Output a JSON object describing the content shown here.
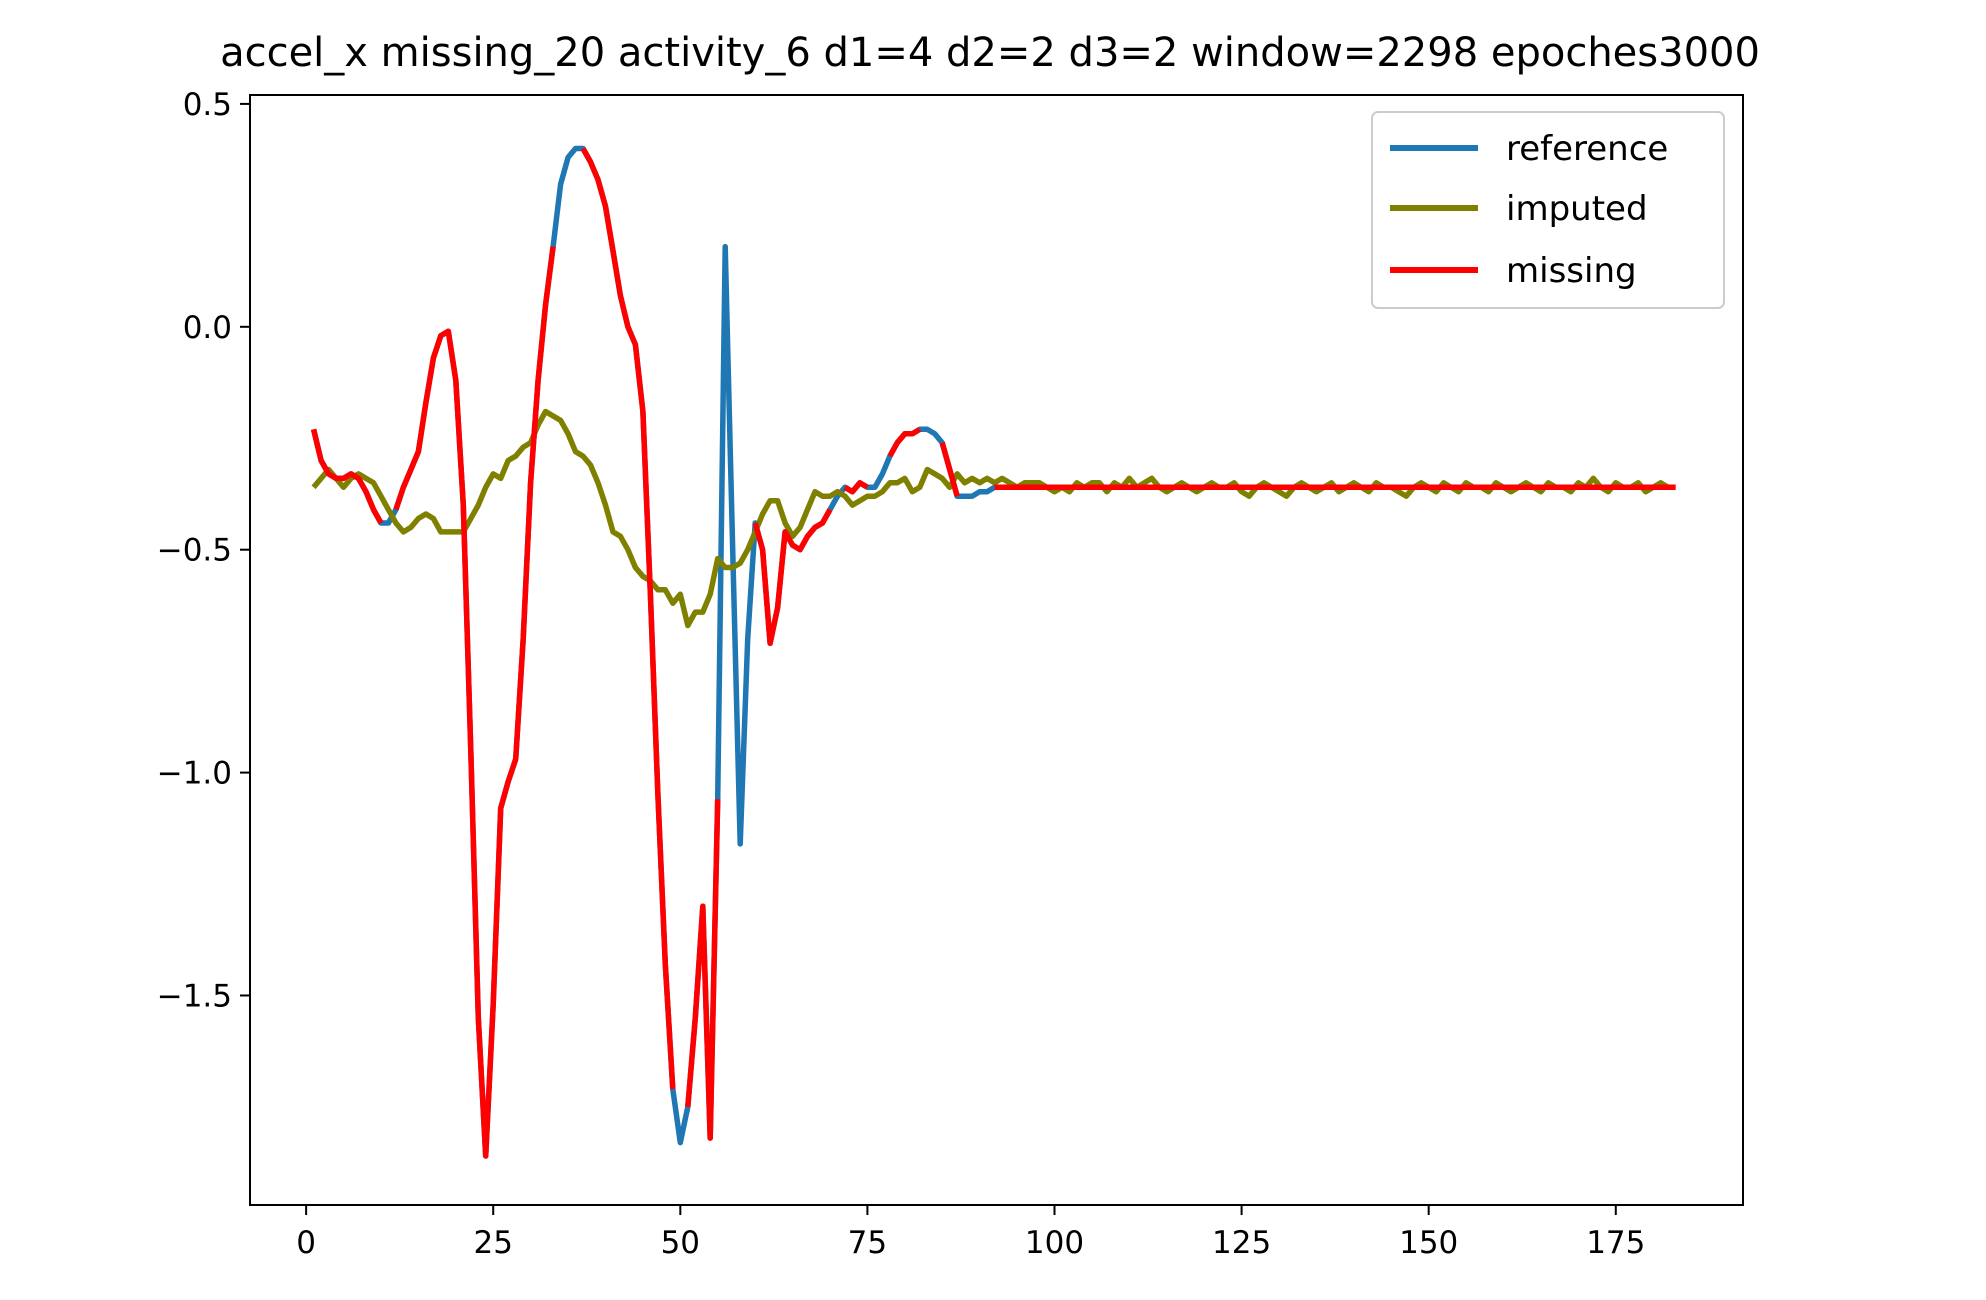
{
  "chart_data": {
    "type": "line",
    "title": "accel_x missing_20 activity_6 d1=4 d2=2 d3=2 window=2298 epoches3000",
    "xlabel": "",
    "ylabel": "",
    "xlim": [
      -7.5,
      192
    ],
    "ylim": [
      -1.97,
      0.52
    ],
    "xticks": [
      0,
      25,
      50,
      75,
      100,
      125,
      150,
      175
    ],
    "yticks": [
      0.5,
      0.0,
      -0.5,
      -1.0,
      -1.5
    ],
    "ytick_labels": [
      "0.5",
      "0.0",
      "−0.5",
      "−1.0",
      "−1.5"
    ],
    "grid": false,
    "legend_position": "top-right",
    "colors": {
      "reference": "#1f77b4",
      "imputed": "#808000",
      "missing": "#ff0000"
    },
    "series": [
      {
        "name": "reference",
        "x": [
          1,
          2,
          3,
          4,
          5,
          6,
          7,
          8,
          9,
          10,
          11,
          12,
          13,
          14,
          15,
          16,
          17,
          18,
          19,
          20,
          21,
          22,
          23,
          24,
          25,
          26,
          27,
          28,
          29,
          30,
          31,
          32,
          33,
          34,
          35,
          36,
          37,
          38,
          39,
          40,
          41,
          42,
          43,
          44,
          45,
          46,
          47,
          48,
          49,
          50,
          51,
          52,
          53,
          54,
          55,
          56,
          57,
          58,
          59,
          60,
          61,
          62,
          63,
          64,
          65,
          66,
          67,
          68,
          69,
          70,
          71,
          72,
          73,
          74,
          75,
          76,
          77,
          78,
          79,
          80,
          81,
          82,
          83,
          84,
          85,
          86,
          87,
          88,
          89,
          90,
          91,
          92,
          93
        ],
        "y": [
          -0.23,
          -0.3,
          -0.33,
          -0.34,
          -0.34,
          -0.33,
          -0.34,
          -0.37,
          -0.41,
          -0.44,
          -0.44,
          -0.41,
          -0.36,
          -0.32,
          -0.28,
          -0.17,
          -0.07,
          -0.02,
          -0.01,
          -0.12,
          -0.4,
          -0.95,
          -1.55,
          -1.86,
          -1.52,
          -1.08,
          -1.02,
          -0.97,
          -0.7,
          -0.35,
          -0.12,
          0.05,
          0.18,
          0.32,
          0.38,
          0.4,
          0.4,
          0.37,
          0.33,
          0.27,
          0.17,
          0.07,
          0.0,
          -0.04,
          -0.19,
          -0.6,
          -1.05,
          -1.43,
          -1.71,
          -1.83,
          -1.75,
          -1.55,
          -1.3,
          -1.82,
          -1.06,
          0.18,
          -0.5,
          -1.16,
          -0.7,
          -0.44,
          -0.5,
          -0.71,
          -0.63,
          -0.46,
          -0.49,
          -0.5,
          -0.47,
          -0.45,
          -0.44,
          -0.41,
          -0.38,
          -0.36,
          -0.37,
          -0.35,
          -0.36,
          -0.36,
          -0.33,
          -0.29,
          -0.26,
          -0.24,
          -0.24,
          -0.23,
          -0.23,
          -0.24,
          -0.26,
          -0.32,
          -0.38,
          -0.38,
          -0.38,
          -0.37,
          -0.37,
          -0.36,
          -0.36
        ]
      },
      {
        "name": "imputed",
        "x": [
          1,
          2,
          3,
          4,
          5,
          6,
          7,
          8,
          9,
          10,
          11,
          12,
          13,
          14,
          15,
          16,
          17,
          18,
          19,
          20,
          21,
          22,
          23,
          24,
          25,
          26,
          27,
          28,
          29,
          30,
          31,
          32,
          33,
          34,
          35,
          36,
          37,
          38,
          39,
          40,
          41,
          42,
          43,
          44,
          45,
          46,
          47,
          48,
          49,
          50,
          51,
          52,
          53,
          54,
          55,
          56,
          57,
          58,
          59,
          60,
          61,
          62,
          63,
          64,
          65,
          66,
          67,
          68,
          69,
          70,
          71,
          72,
          73,
          74,
          75,
          76,
          77,
          78,
          79,
          80,
          81,
          82,
          83,
          84,
          85,
          86,
          87,
          88,
          89,
          90,
          91,
          92,
          93,
          94,
          95,
          96,
          97,
          98,
          99,
          100,
          101,
          102,
          103,
          104,
          105,
          106,
          107,
          108,
          109,
          110,
          111,
          112,
          113,
          114,
          115,
          116,
          117,
          118,
          119,
          120,
          121,
          122,
          123,
          124,
          125,
          126,
          127,
          128,
          129,
          130,
          131,
          132,
          133,
          134,
          135,
          136,
          137,
          138,
          139,
          140,
          141,
          142,
          143,
          144,
          145,
          146,
          147,
          148,
          149,
          150,
          151,
          152,
          153,
          154,
          155,
          156,
          157,
          158,
          159,
          160,
          161,
          162,
          163,
          164,
          165,
          166,
          167,
          168,
          169,
          170,
          171,
          172,
          173,
          174,
          175,
          176,
          177,
          178,
          179,
          180,
          181,
          182,
          183
        ],
        "y": [
          -0.36,
          -0.34,
          -0.32,
          -0.34,
          -0.36,
          -0.34,
          -0.33,
          -0.34,
          -0.35,
          -0.38,
          -0.41,
          -0.44,
          -0.46,
          -0.45,
          -0.43,
          -0.42,
          -0.43,
          -0.46,
          -0.46,
          -0.46,
          -0.46,
          -0.43,
          -0.4,
          -0.36,
          -0.33,
          -0.34,
          -0.3,
          -0.29,
          -0.27,
          -0.26,
          -0.22,
          -0.19,
          -0.2,
          -0.21,
          -0.24,
          -0.28,
          -0.29,
          -0.31,
          -0.35,
          -0.4,
          -0.46,
          -0.47,
          -0.5,
          -0.54,
          -0.56,
          -0.57,
          -0.59,
          -0.59,
          -0.62,
          -0.6,
          -0.67,
          -0.64,
          -0.64,
          -0.6,
          -0.52,
          -0.54,
          -0.54,
          -0.53,
          -0.5,
          -0.46,
          -0.42,
          -0.39,
          -0.39,
          -0.44,
          -0.47,
          -0.45,
          -0.41,
          -0.37,
          -0.38,
          -0.38,
          -0.37,
          -0.38,
          -0.4,
          -0.39,
          -0.38,
          -0.38,
          -0.37,
          -0.35,
          -0.35,
          -0.34,
          -0.37,
          -0.36,
          -0.32,
          -0.33,
          -0.34,
          -0.36,
          -0.33,
          -0.35,
          -0.34,
          -0.35,
          -0.34,
          -0.35,
          -0.34,
          -0.35,
          -0.36,
          -0.35,
          -0.35,
          -0.35,
          -0.36,
          -0.37,
          -0.36,
          -0.37,
          -0.35,
          -0.36,
          -0.35,
          -0.35,
          -0.37,
          -0.35,
          -0.36,
          -0.34,
          -0.36,
          -0.35,
          -0.34,
          -0.36,
          -0.37,
          -0.36,
          -0.35,
          -0.36,
          -0.37,
          -0.36,
          -0.35,
          -0.36,
          -0.36,
          -0.35,
          -0.37,
          -0.38,
          -0.36,
          -0.35,
          -0.36,
          -0.37,
          -0.38,
          -0.36,
          -0.35,
          -0.36,
          -0.37,
          -0.36,
          -0.35,
          -0.37,
          -0.36,
          -0.35,
          -0.36,
          -0.37,
          -0.35,
          -0.36,
          -0.36,
          -0.37,
          -0.38,
          -0.36,
          -0.35,
          -0.36,
          -0.37,
          -0.35,
          -0.36,
          -0.37,
          -0.35,
          -0.36,
          -0.36,
          -0.37,
          -0.35,
          -0.36,
          -0.37,
          -0.36,
          -0.35,
          -0.36,
          -0.37,
          -0.35,
          -0.36,
          -0.36,
          -0.37,
          -0.35,
          -0.36,
          -0.34,
          -0.36,
          -0.37,
          -0.35,
          -0.36,
          -0.36,
          -0.35,
          -0.37,
          -0.36,
          -0.35,
          -0.36,
          -0.36
        ]
      },
      {
        "name": "missing",
        "segments": [
          {
            "x": [
              1,
              2,
              3,
              4,
              5,
              6,
              7,
              8,
              9,
              10
            ],
            "y": [
              -0.23,
              -0.3,
              -0.33,
              -0.34,
              -0.34,
              -0.33,
              -0.34,
              -0.37,
              -0.41,
              -0.44
            ]
          },
          {
            "x": [
              12,
              13,
              14,
              15,
              16,
              17,
              18,
              19,
              20,
              21,
              22,
              23,
              24,
              25,
              26,
              27,
              28,
              29,
              30,
              31,
              32,
              33
            ],
            "y": [
              -0.41,
              -0.36,
              -0.32,
              -0.28,
              -0.17,
              -0.07,
              -0.02,
              -0.01,
              -0.12,
              -0.4,
              -0.95,
              -1.55,
              -1.86,
              -1.52,
              -1.08,
              -1.02,
              -0.97,
              -0.7,
              -0.35,
              -0.12,
              0.05,
              0.18
            ]
          },
          {
            "x": [
              37,
              38,
              39,
              40,
              41,
              42,
              43,
              44,
              45,
              46,
              47,
              48,
              49
            ],
            "y": [
              0.4,
              0.37,
              0.33,
              0.27,
              0.17,
              0.07,
              0.0,
              -0.04,
              -0.19,
              -0.6,
              -1.05,
              -1.43,
              -1.71
            ]
          },
          {
            "x": [
              51,
              52,
              53,
              54,
              55
            ],
            "y": [
              -1.75,
              -1.55,
              -1.3,
              -1.82,
              -1.06
            ]
          },
          {
            "x": [
              60,
              61,
              62,
              63,
              64,
              65,
              66,
              67,
              68,
              69,
              70
            ],
            "y": [
              -0.44,
              -0.5,
              -0.71,
              -0.63,
              -0.46,
              -0.49,
              -0.5,
              -0.47,
              -0.45,
              -0.44,
              -0.41
            ]
          },
          {
            "x": [
              72,
              73,
              74,
              75
            ],
            "y": [
              -0.36,
              -0.37,
              -0.35,
              -0.36
            ]
          },
          {
            "x": [
              78,
              79,
              80,
              81,
              82
            ],
            "y": [
              -0.29,
              -0.26,
              -0.24,
              -0.24,
              -0.23
            ]
          },
          {
            "x": [
              85,
              86,
              87
            ],
            "y": [
              -0.26,
              -0.32,
              -0.38
            ]
          },
          {
            "x": [
              92,
              183
            ],
            "y": [
              -0.36,
              -0.36
            ]
          }
        ]
      }
    ]
  }
}
